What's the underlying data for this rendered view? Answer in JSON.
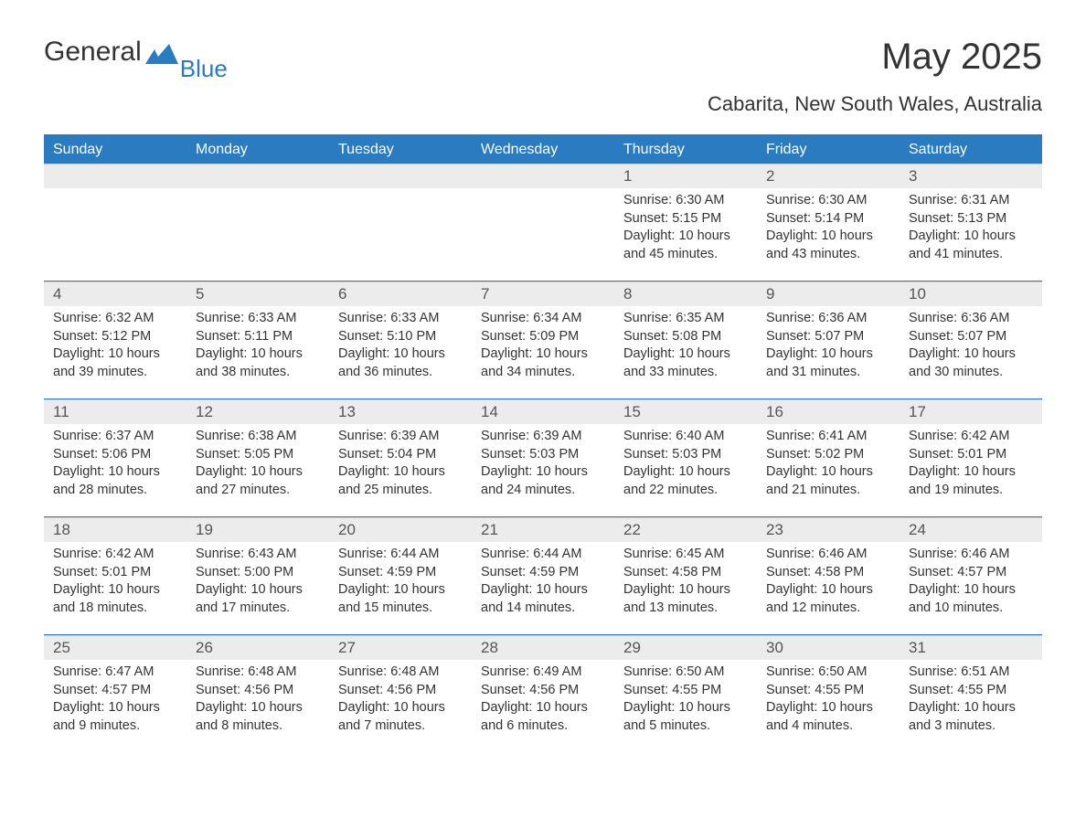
{
  "brand": {
    "part1": "General",
    "part2": "Blue",
    "icon_color": "#2a7bbf"
  },
  "title": "May 2025",
  "location": "Cabarita, New South Wales, Australia",
  "colors": {
    "header_bg": "#2a7bbf",
    "header_text": "#ffffff",
    "daynum_bg": "#ececec",
    "daynum_text": "#555555",
    "body_text": "#333333",
    "rule": "#2a7bbf",
    "page_bg": "#ffffff"
  },
  "layout": {
    "columns": 7,
    "label_prefixes": {
      "sunrise": "Sunrise: ",
      "sunset": "Sunset: ",
      "daylight": "Daylight: "
    },
    "font_family": "Arial",
    "dow_fontsize": 16,
    "title_fontsize": 40,
    "location_fontsize": 22,
    "body_fontsize": 14.5,
    "daynum_fontsize": 17
  },
  "days_of_week": [
    "Sunday",
    "Monday",
    "Tuesday",
    "Wednesday",
    "Thursday",
    "Friday",
    "Saturday"
  ],
  "weeks": [
    [
      null,
      null,
      null,
      null,
      {
        "n": "1",
        "sunrise": "6:30 AM",
        "sunset": "5:15 PM",
        "daylight": "10 hours and 45 minutes."
      },
      {
        "n": "2",
        "sunrise": "6:30 AM",
        "sunset": "5:14 PM",
        "daylight": "10 hours and 43 minutes."
      },
      {
        "n": "3",
        "sunrise": "6:31 AM",
        "sunset": "5:13 PM",
        "daylight": "10 hours and 41 minutes."
      }
    ],
    [
      {
        "n": "4",
        "sunrise": "6:32 AM",
        "sunset": "5:12 PM",
        "daylight": "10 hours and 39 minutes."
      },
      {
        "n": "5",
        "sunrise": "6:33 AM",
        "sunset": "5:11 PM",
        "daylight": "10 hours and 38 minutes."
      },
      {
        "n": "6",
        "sunrise": "6:33 AM",
        "sunset": "5:10 PM",
        "daylight": "10 hours and 36 minutes."
      },
      {
        "n": "7",
        "sunrise": "6:34 AM",
        "sunset": "5:09 PM",
        "daylight": "10 hours and 34 minutes."
      },
      {
        "n": "8",
        "sunrise": "6:35 AM",
        "sunset": "5:08 PM",
        "daylight": "10 hours and 33 minutes."
      },
      {
        "n": "9",
        "sunrise": "6:36 AM",
        "sunset": "5:07 PM",
        "daylight": "10 hours and 31 minutes."
      },
      {
        "n": "10",
        "sunrise": "6:36 AM",
        "sunset": "5:07 PM",
        "daylight": "10 hours and 30 minutes."
      }
    ],
    [
      {
        "n": "11",
        "sunrise": "6:37 AM",
        "sunset": "5:06 PM",
        "daylight": "10 hours and 28 minutes."
      },
      {
        "n": "12",
        "sunrise": "6:38 AM",
        "sunset": "5:05 PM",
        "daylight": "10 hours and 27 minutes."
      },
      {
        "n": "13",
        "sunrise": "6:39 AM",
        "sunset": "5:04 PM",
        "daylight": "10 hours and 25 minutes."
      },
      {
        "n": "14",
        "sunrise": "6:39 AM",
        "sunset": "5:03 PM",
        "daylight": "10 hours and 24 minutes."
      },
      {
        "n": "15",
        "sunrise": "6:40 AM",
        "sunset": "5:03 PM",
        "daylight": "10 hours and 22 minutes."
      },
      {
        "n": "16",
        "sunrise": "6:41 AM",
        "sunset": "5:02 PM",
        "daylight": "10 hours and 21 minutes."
      },
      {
        "n": "17",
        "sunrise": "6:42 AM",
        "sunset": "5:01 PM",
        "daylight": "10 hours and 19 minutes."
      }
    ],
    [
      {
        "n": "18",
        "sunrise": "6:42 AM",
        "sunset": "5:01 PM",
        "daylight": "10 hours and 18 minutes."
      },
      {
        "n": "19",
        "sunrise": "6:43 AM",
        "sunset": "5:00 PM",
        "daylight": "10 hours and 17 minutes."
      },
      {
        "n": "20",
        "sunrise": "6:44 AM",
        "sunset": "4:59 PM",
        "daylight": "10 hours and 15 minutes."
      },
      {
        "n": "21",
        "sunrise": "6:44 AM",
        "sunset": "4:59 PM",
        "daylight": "10 hours and 14 minutes."
      },
      {
        "n": "22",
        "sunrise": "6:45 AM",
        "sunset": "4:58 PM",
        "daylight": "10 hours and 13 minutes."
      },
      {
        "n": "23",
        "sunrise": "6:46 AM",
        "sunset": "4:58 PM",
        "daylight": "10 hours and 12 minutes."
      },
      {
        "n": "24",
        "sunrise": "6:46 AM",
        "sunset": "4:57 PM",
        "daylight": "10 hours and 10 minutes."
      }
    ],
    [
      {
        "n": "25",
        "sunrise": "6:47 AM",
        "sunset": "4:57 PM",
        "daylight": "10 hours and 9 minutes."
      },
      {
        "n": "26",
        "sunrise": "6:48 AM",
        "sunset": "4:56 PM",
        "daylight": "10 hours and 8 minutes."
      },
      {
        "n": "27",
        "sunrise": "6:48 AM",
        "sunset": "4:56 PM",
        "daylight": "10 hours and 7 minutes."
      },
      {
        "n": "28",
        "sunrise": "6:49 AM",
        "sunset": "4:56 PM",
        "daylight": "10 hours and 6 minutes."
      },
      {
        "n": "29",
        "sunrise": "6:50 AM",
        "sunset": "4:55 PM",
        "daylight": "10 hours and 5 minutes."
      },
      {
        "n": "30",
        "sunrise": "6:50 AM",
        "sunset": "4:55 PM",
        "daylight": "10 hours and 4 minutes."
      },
      {
        "n": "31",
        "sunrise": "6:51 AM",
        "sunset": "4:55 PM",
        "daylight": "10 hours and 3 minutes."
      }
    ]
  ]
}
